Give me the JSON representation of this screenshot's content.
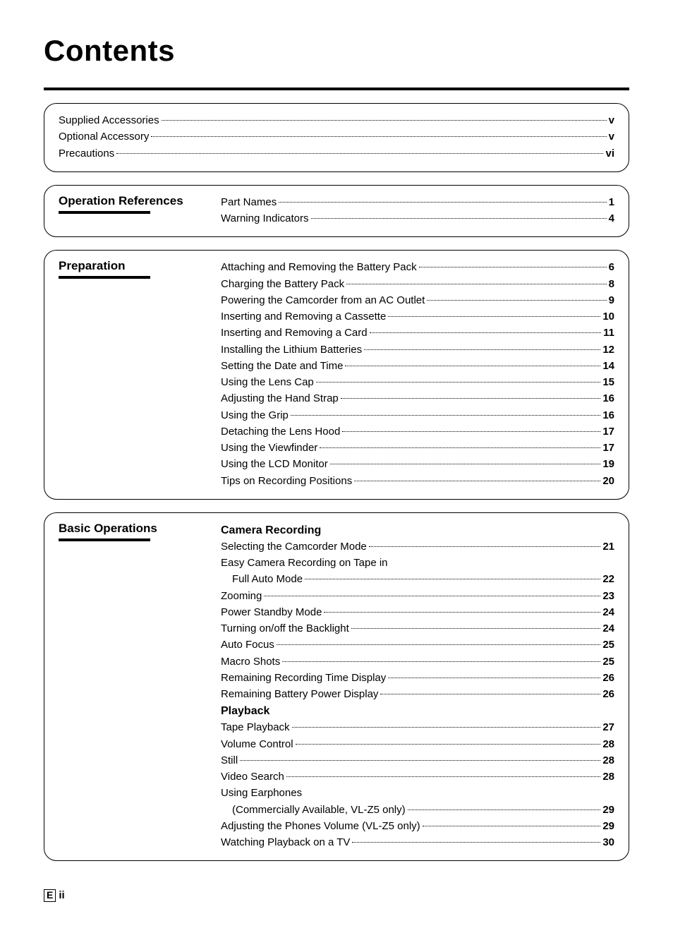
{
  "title": "Contents",
  "intro": [
    {
      "label": "Supplied Accessories",
      "page": "v"
    },
    {
      "label": "Optional Accessory",
      "page": "v"
    },
    {
      "label": "Precautions",
      "page": "vi"
    }
  ],
  "sections": [
    {
      "heading": "Operation References",
      "groups": [
        {
          "subhead": null,
          "items": [
            {
              "label": "Part Names",
              "page": "1"
            },
            {
              "label": "Warning Indicators",
              "page": "4"
            }
          ]
        }
      ]
    },
    {
      "heading": "Preparation",
      "groups": [
        {
          "subhead": null,
          "items": [
            {
              "label": "Attaching and Removing the Battery Pack",
              "page": "6"
            },
            {
              "label": "Charging the Battery Pack",
              "page": "8"
            },
            {
              "label": "Powering the Camcorder from an AC Outlet",
              "page": "9"
            },
            {
              "label": "Inserting and Removing a Cassette",
              "page": "10"
            },
            {
              "label": "Inserting and Removing a Card",
              "page": "11"
            },
            {
              "label": "Installing the Lithium Batteries",
              "page": "12"
            },
            {
              "label": "Setting the Date and Time",
              "page": "14"
            },
            {
              "label": "Using the Lens Cap",
              "page": "15"
            },
            {
              "label": "Adjusting the Hand Strap",
              "page": "16"
            },
            {
              "label": "Using the Grip",
              "page": "16"
            },
            {
              "label": "Detaching the Lens Hood",
              "page": "17"
            },
            {
              "label": "Using the Viewfinder",
              "page": "17"
            },
            {
              "label": "Using the LCD Monitor",
              "page": "19"
            },
            {
              "label": "Tips on Recording Positions",
              "page": "20"
            }
          ]
        }
      ]
    },
    {
      "heading": "Basic Operations",
      "groups": [
        {
          "subhead": "Camera Recording",
          "items": [
            {
              "label": "Selecting the Camcorder Mode",
              "page": "21"
            },
            {
              "label": "Easy Camera Recording on Tape in",
              "page": null
            },
            {
              "label": "Full Auto Mode",
              "page": "22",
              "indent": true
            },
            {
              "label": "Zooming",
              "page": "23"
            },
            {
              "label": "Power Standby Mode",
              "page": "24"
            },
            {
              "label": "Turning on/off the Backlight",
              "page": "24"
            },
            {
              "label": "Auto Focus",
              "page": "25"
            },
            {
              "label": "Macro Shots",
              "page": "25"
            },
            {
              "label": "Remaining Recording Time Display",
              "page": "26"
            },
            {
              "label": "Remaining Battery Power Display",
              "page": "26"
            }
          ]
        },
        {
          "subhead": "Playback",
          "items": [
            {
              "label": "Tape Playback",
              "page": "27"
            },
            {
              "label": "Volume Control",
              "page": "28"
            },
            {
              "label": "Still",
              "page": "28"
            },
            {
              "label": "Video Search",
              "page": "28"
            },
            {
              "label": "Using Earphones",
              "page": null
            },
            {
              "label": "(Commercially Available, VL-Z5 only)",
              "page": "29",
              "indent": true
            },
            {
              "label": "Adjusting the Phones Volume (VL-Z5 only)",
              "page": "29"
            },
            {
              "label": "Watching Playback on a TV",
              "page": "30"
            }
          ]
        }
      ]
    }
  ],
  "footer": {
    "boxed": "E",
    "page": "ii"
  }
}
